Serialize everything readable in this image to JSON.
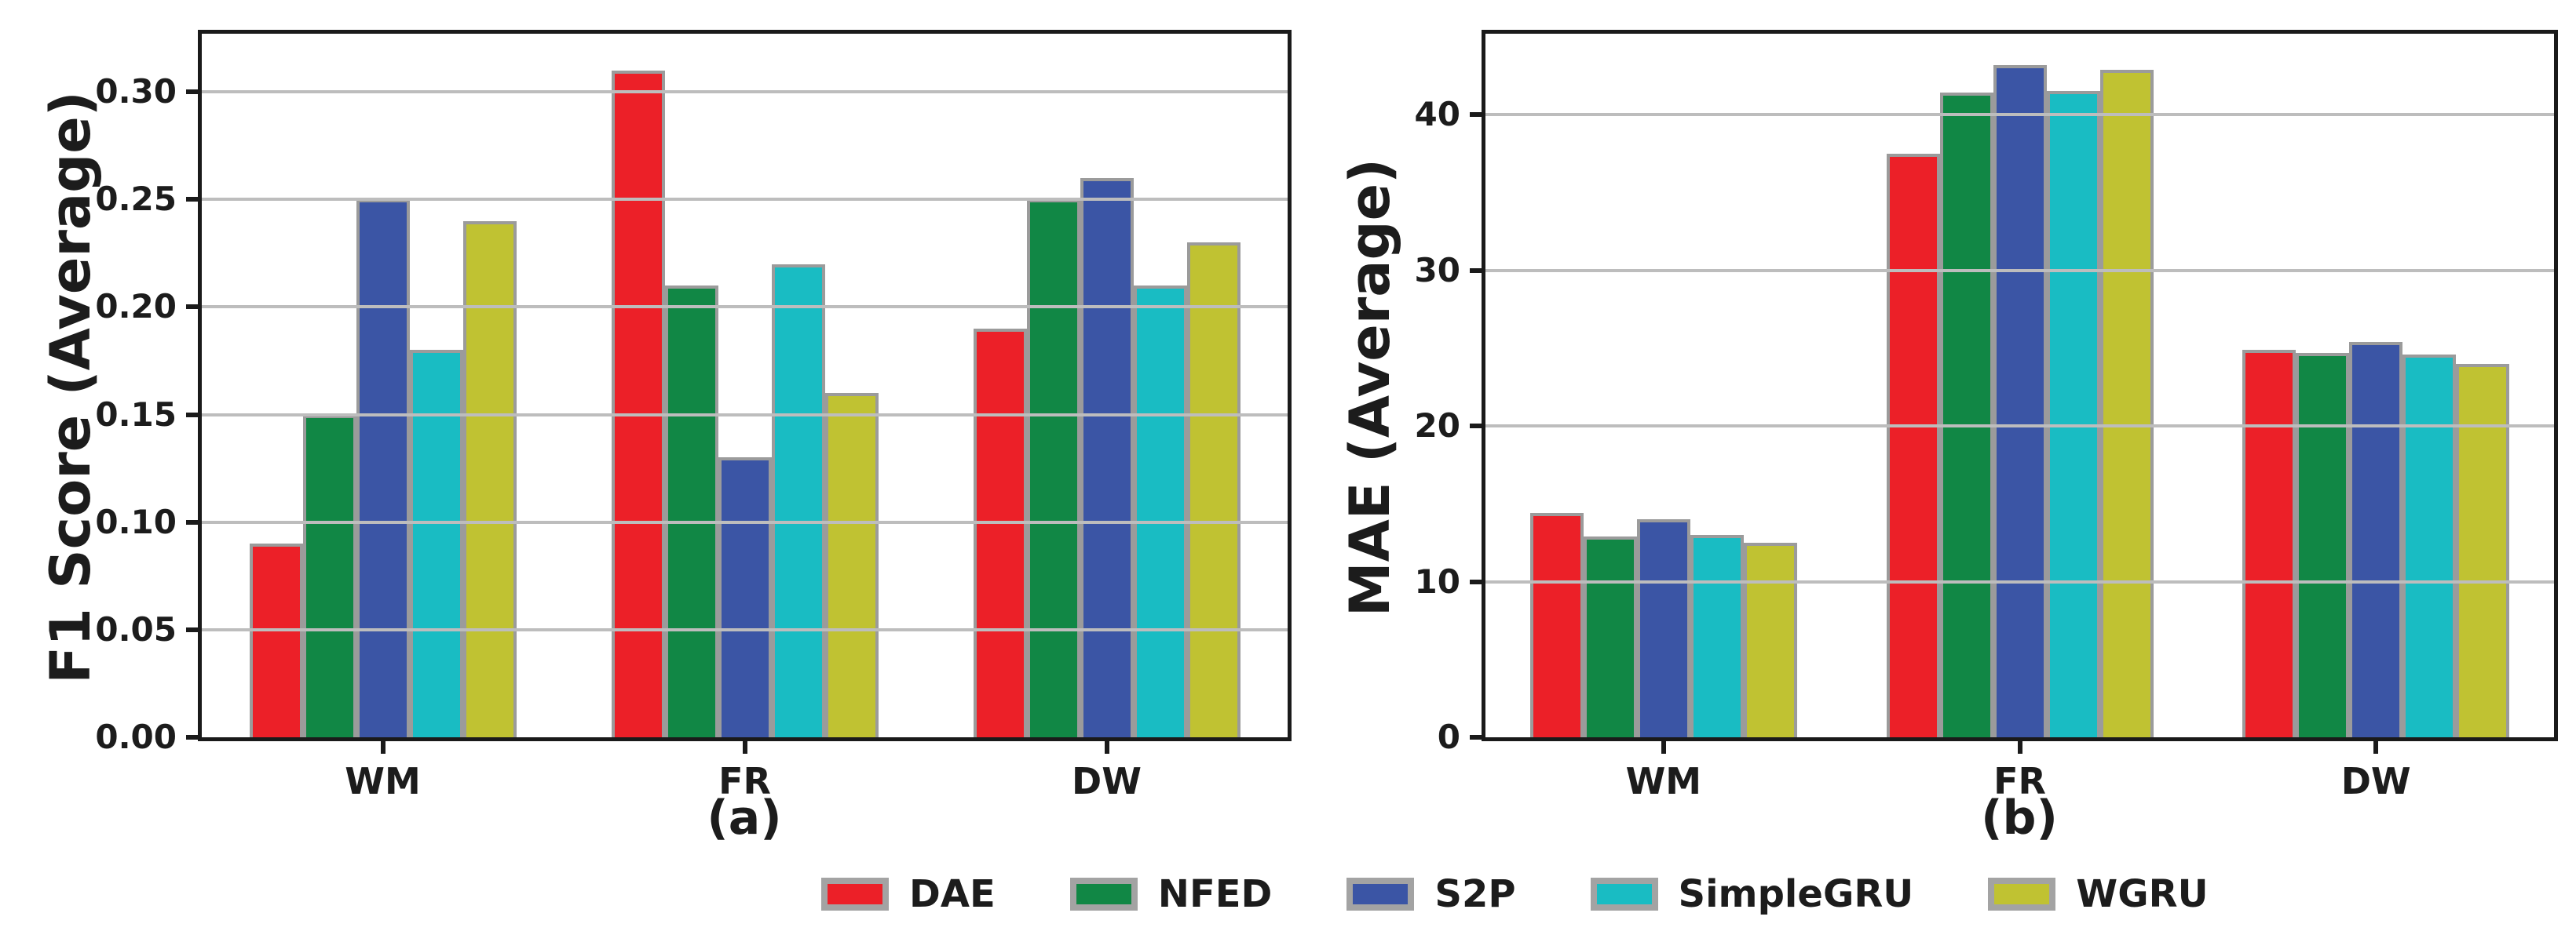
{
  "figure": {
    "background": "#ffffff",
    "text_color": "#1c1c1c",
    "grid_color": "#bdbdbd",
    "spine_color": "#1a1a1a",
    "bar_edge_color": "#9b9b9b",
    "legend_edge_color": "#a3a3a3"
  },
  "legend": {
    "items": [
      {
        "label": "DAE",
        "color": "#ec2028"
      },
      {
        "label": "NFED",
        "color": "#118745"
      },
      {
        "label": "S2P",
        "color": "#3b55a5"
      },
      {
        "label": "SimpleGRU",
        "color": "#19bcc3"
      },
      {
        "label": "WGRU",
        "color": "#c0c232"
      }
    ],
    "position": "bottom-center"
  },
  "chart_data": [
    {
      "type": "bar",
      "panel": "a",
      "caption": "(a)",
      "title": "",
      "xlabel": "",
      "ylabel": "F1 Score (Average)",
      "categories": [
        "WM",
        "FR",
        "DW"
      ],
      "series": [
        {
          "name": "DAE",
          "color": "#ec2028",
          "values": [
            0.09,
            0.31,
            0.19
          ]
        },
        {
          "name": "NFED",
          "color": "#118745",
          "values": [
            0.15,
            0.21,
            0.25
          ]
        },
        {
          "name": "S2P",
          "color": "#3b55a5",
          "values": [
            0.25,
            0.13,
            0.26
          ]
        },
        {
          "name": "SimpleGRU",
          "color": "#19bcc3",
          "values": [
            0.18,
            0.22,
            0.21
          ]
        },
        {
          "name": "WGRU",
          "color": "#c0c232",
          "values": [
            0.24,
            0.16,
            0.23
          ]
        }
      ],
      "ylim": [
        0,
        0.327
      ],
      "yticks": [
        0,
        0.05,
        0.1,
        0.15,
        0.2,
        0.25,
        0.3
      ],
      "ytick_labels": [
        "0.00",
        "0.05",
        "0.10",
        "0.15",
        "0.20",
        "0.25",
        "0.30"
      ],
      "grid": true,
      "grid_on_top": true,
      "legend_position": "below-figure-shared"
    },
    {
      "type": "bar",
      "panel": "b",
      "caption": "(b)",
      "title": "",
      "xlabel": "",
      "ylabel": "MAE (Average)",
      "categories": [
        "WM",
        "FR",
        "DW"
      ],
      "series": [
        {
          "name": "DAE",
          "color": "#ec2028",
          "values": [
            14.4,
            37.5,
            24.9
          ]
        },
        {
          "name": "NFED",
          "color": "#118745",
          "values": [
            12.9,
            41.4,
            24.7
          ]
        },
        {
          "name": "S2P",
          "color": "#3b55a5",
          "values": [
            14.0,
            43.2,
            25.4
          ]
        },
        {
          "name": "SimpleGRU",
          "color": "#19bcc3",
          "values": [
            13.0,
            41.5,
            24.6
          ]
        },
        {
          "name": "WGRU",
          "color": "#c0c232",
          "values": [
            12.5,
            42.9,
            24.0
          ]
        }
      ],
      "ylim": [
        0,
        45.2
      ],
      "yticks": [
        0,
        10,
        20,
        30,
        40
      ],
      "ytick_labels": [
        "0",
        "10",
        "20",
        "30",
        "40"
      ],
      "grid": true,
      "grid_on_top": true,
      "legend_position": "below-figure-shared"
    }
  ]
}
